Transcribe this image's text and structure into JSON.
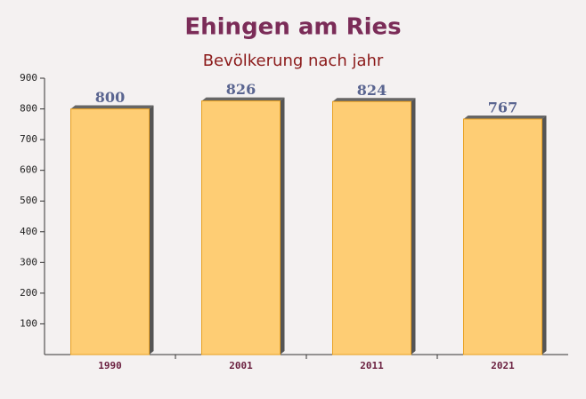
{
  "chart_data": {
    "type": "bar",
    "title": "Ehingen am Ries",
    "subtitle": "Bevölkerung nach jahr",
    "categories": [
      "1990",
      "2001",
      "2011",
      "2021"
    ],
    "values": [
      800,
      826,
      824,
      767
    ],
    "color": "#ffc966",
    "ylim": [
      0,
      900
    ],
    "yticks": [
      100,
      200,
      300,
      400,
      500,
      600,
      700,
      800,
      900
    ],
    "grid": false
  }
}
